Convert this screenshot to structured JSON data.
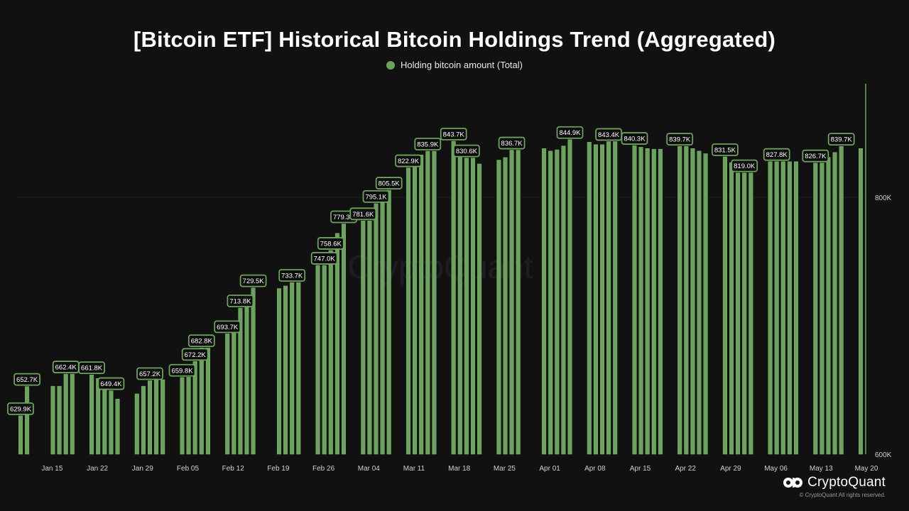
{
  "title": "[Bitcoin ETF] Historical Bitcoin Holdings Trend (Aggregated)",
  "legend": {
    "label": "Holding bitcoin amount (Total)",
    "color": "#6aa35c"
  },
  "watermark": "CryptoQuant",
  "brand": {
    "name": "CryptoQuant",
    "copyright": "© CryptoQuant All rights reserved."
  },
  "colors": {
    "background": "#111112",
    "bar": "#6aa35c",
    "bar_stroke": "#8cc47c",
    "label_bg": "#0d0d0d",
    "label_border": "#6aa35c",
    "axis": "#6aa35c"
  },
  "chart_data": {
    "type": "bar",
    "series": [
      {
        "name": "Holding bitcoin amount (Total)"
      }
    ],
    "ylim": [
      600000,
      1000000
    ],
    "yticks": [
      {
        "value": 600000,
        "label": "600K"
      },
      {
        "value": 800000,
        "label": "800K"
      }
    ],
    "x_ticks": [
      "Jan 15",
      "Jan 22",
      "Jan 29",
      "Feb 05",
      "Feb 12",
      "Feb 19",
      "Feb 26",
      "Mar 04",
      "Mar 11",
      "Mar 18",
      "Mar 25",
      "Apr 01",
      "Apr 08",
      "Apr 15",
      "Apr 22",
      "Apr 29",
      "May 06",
      "May 13",
      "May 20"
    ],
    "points": [
      {
        "date": "2024-01-11",
        "value": 629900
      },
      {
        "date": "2024-01-12",
        "value": 652700
      },
      {
        "date": "2024-01-16",
        "value": 653000
      },
      {
        "date": "2024-01-17",
        "value": 653000
      },
      {
        "date": "2024-01-18",
        "value": 662400
      },
      {
        "date": "2024-01-19",
        "value": 662400
      },
      {
        "date": "2024-01-22",
        "value": 661800
      },
      {
        "date": "2024-01-23",
        "value": 659000
      },
      {
        "date": "2024-01-24",
        "value": 653000
      },
      {
        "date": "2024-01-25",
        "value": 649400
      },
      {
        "date": "2024-01-26",
        "value": 643000
      },
      {
        "date": "2024-01-29",
        "value": 647000
      },
      {
        "date": "2024-01-30",
        "value": 653000
      },
      {
        "date": "2024-01-31",
        "value": 657200
      },
      {
        "date": "2024-02-01",
        "value": 658000
      },
      {
        "date": "2024-02-02",
        "value": 658000
      },
      {
        "date": "2024-02-05",
        "value": 659800
      },
      {
        "date": "2024-02-06",
        "value": 660000
      },
      {
        "date": "2024-02-07",
        "value": 672200
      },
      {
        "date": "2024-02-08",
        "value": 682800
      },
      {
        "date": "2024-02-09",
        "value": 682800
      },
      {
        "date": "2024-02-12",
        "value": 693700
      },
      {
        "date": "2024-02-13",
        "value": 700000
      },
      {
        "date": "2024-02-14",
        "value": 713800
      },
      {
        "date": "2024-02-15",
        "value": 718000
      },
      {
        "date": "2024-02-16",
        "value": 729500
      },
      {
        "date": "2024-02-20",
        "value": 729000
      },
      {
        "date": "2024-02-21",
        "value": 731000
      },
      {
        "date": "2024-02-22",
        "value": 733700
      },
      {
        "date": "2024-02-23",
        "value": 733700
      },
      {
        "date": "2024-02-26",
        "value": 747000
      },
      {
        "date": "2024-02-27",
        "value": 747000
      },
      {
        "date": "2024-02-28",
        "value": 758600
      },
      {
        "date": "2024-02-29",
        "value": 772000
      },
      {
        "date": "2024-03-01",
        "value": 779300
      },
      {
        "date": "2024-03-04",
        "value": 781600
      },
      {
        "date": "2024-03-05",
        "value": 781600
      },
      {
        "date": "2024-03-06",
        "value": 795100
      },
      {
        "date": "2024-03-07",
        "value": 798000
      },
      {
        "date": "2024-03-08",
        "value": 805500
      },
      {
        "date": "2024-03-11",
        "value": 822900
      },
      {
        "date": "2024-03-12",
        "value": 829000
      },
      {
        "date": "2024-03-13",
        "value": 833000
      },
      {
        "date": "2024-03-14",
        "value": 835900
      },
      {
        "date": "2024-03-15",
        "value": 835900
      },
      {
        "date": "2024-03-18",
        "value": 843700
      },
      {
        "date": "2024-03-19",
        "value": 838000
      },
      {
        "date": "2024-03-20",
        "value": 830600
      },
      {
        "date": "2024-03-21",
        "value": 830600
      },
      {
        "date": "2024-03-22",
        "value": 826000
      },
      {
        "date": "2024-03-25",
        "value": 829000
      },
      {
        "date": "2024-03-26",
        "value": 831000
      },
      {
        "date": "2024-03-27",
        "value": 836700
      },
      {
        "date": "2024-03-28",
        "value": 836700
      },
      {
        "date": "2024-04-01",
        "value": 838000
      },
      {
        "date": "2024-04-02",
        "value": 836000
      },
      {
        "date": "2024-04-03",
        "value": 837000
      },
      {
        "date": "2024-04-04",
        "value": 840000
      },
      {
        "date": "2024-04-05",
        "value": 844900
      },
      {
        "date": "2024-04-08",
        "value": 843000
      },
      {
        "date": "2024-04-09",
        "value": 841000
      },
      {
        "date": "2024-04-10",
        "value": 841000
      },
      {
        "date": "2024-04-11",
        "value": 843400
      },
      {
        "date": "2024-04-12",
        "value": 843400
      },
      {
        "date": "2024-04-15",
        "value": 840300
      },
      {
        "date": "2024-04-16",
        "value": 839000
      },
      {
        "date": "2024-04-17",
        "value": 838000
      },
      {
        "date": "2024-04-18",
        "value": 837500
      },
      {
        "date": "2024-04-19",
        "value": 837500
      },
      {
        "date": "2024-04-22",
        "value": 839700
      },
      {
        "date": "2024-04-23",
        "value": 839700
      },
      {
        "date": "2024-04-24",
        "value": 838000
      },
      {
        "date": "2024-04-25",
        "value": 836000
      },
      {
        "date": "2024-04-26",
        "value": 834000
      },
      {
        "date": "2024-04-29",
        "value": 831500
      },
      {
        "date": "2024-04-30",
        "value": 827000
      },
      {
        "date": "2024-05-01",
        "value": 819000
      },
      {
        "date": "2024-05-02",
        "value": 819000
      },
      {
        "date": "2024-05-03",
        "value": 819000
      },
      {
        "date": "2024-05-06",
        "value": 827800
      },
      {
        "date": "2024-05-07",
        "value": 827800
      },
      {
        "date": "2024-05-08",
        "value": 827800
      },
      {
        "date": "2024-05-09",
        "value": 827800
      },
      {
        "date": "2024-05-10",
        "value": 827800
      },
      {
        "date": "2024-05-13",
        "value": 826700
      },
      {
        "date": "2024-05-14",
        "value": 826700
      },
      {
        "date": "2024-05-15",
        "value": 831000
      },
      {
        "date": "2024-05-16",
        "value": 835000
      },
      {
        "date": "2024-05-17",
        "value": 839700
      },
      {
        "date": "2024-05-20",
        "value": 838000
      }
    ],
    "annotations": [
      {
        "date": "2024-01-11",
        "label": "629.9K"
      },
      {
        "date": "2024-01-12",
        "label": "652.7K"
      },
      {
        "date": "2024-01-18",
        "label": "662.4K"
      },
      {
        "date": "2024-01-22",
        "label": "661.8K"
      },
      {
        "date": "2024-01-25",
        "label": "649.4K"
      },
      {
        "date": "2024-01-31",
        "label": "657.2K"
      },
      {
        "date": "2024-02-05",
        "label": "659.8K"
      },
      {
        "date": "2024-02-07",
        "label": "672.2K"
      },
      {
        "date": "2024-02-08",
        "label": "682.8K"
      },
      {
        "date": "2024-02-12",
        "label": "693.7K"
      },
      {
        "date": "2024-02-14",
        "label": "713.8K"
      },
      {
        "date": "2024-02-16",
        "label": "729.5K"
      },
      {
        "date": "2024-02-22",
        "label": "733.7K"
      },
      {
        "date": "2024-02-27",
        "label": "747.0K"
      },
      {
        "date": "2024-02-28",
        "label": "758.6K"
      },
      {
        "date": "2024-03-01",
        "label": "779.3K"
      },
      {
        "date": "2024-03-04",
        "label": "781.6K"
      },
      {
        "date": "2024-03-06",
        "label": "795.1K"
      },
      {
        "date": "2024-03-08",
        "label": "805.5K"
      },
      {
        "date": "2024-03-11",
        "label": "822.9K"
      },
      {
        "date": "2024-03-14",
        "label": "835.9K"
      },
      {
        "date": "2024-03-18",
        "label": "843.7K"
      },
      {
        "date": "2024-03-20",
        "label": "830.6K"
      },
      {
        "date": "2024-03-27",
        "label": "836.7K"
      },
      {
        "date": "2024-04-05",
        "label": "844.9K"
      },
      {
        "date": "2024-04-11",
        "label": "843.4K"
      },
      {
        "date": "2024-04-15",
        "label": "840.3K"
      },
      {
        "date": "2024-04-22",
        "label": "839.7K"
      },
      {
        "date": "2024-04-29",
        "label": "831.5K"
      },
      {
        "date": "2024-05-02",
        "label": "819.0K"
      },
      {
        "date": "2024-05-07",
        "label": "827.8K"
      },
      {
        "date": "2024-05-13",
        "label": "826.7K"
      },
      {
        "date": "2024-05-17",
        "label": "839.7K"
      }
    ]
  }
}
